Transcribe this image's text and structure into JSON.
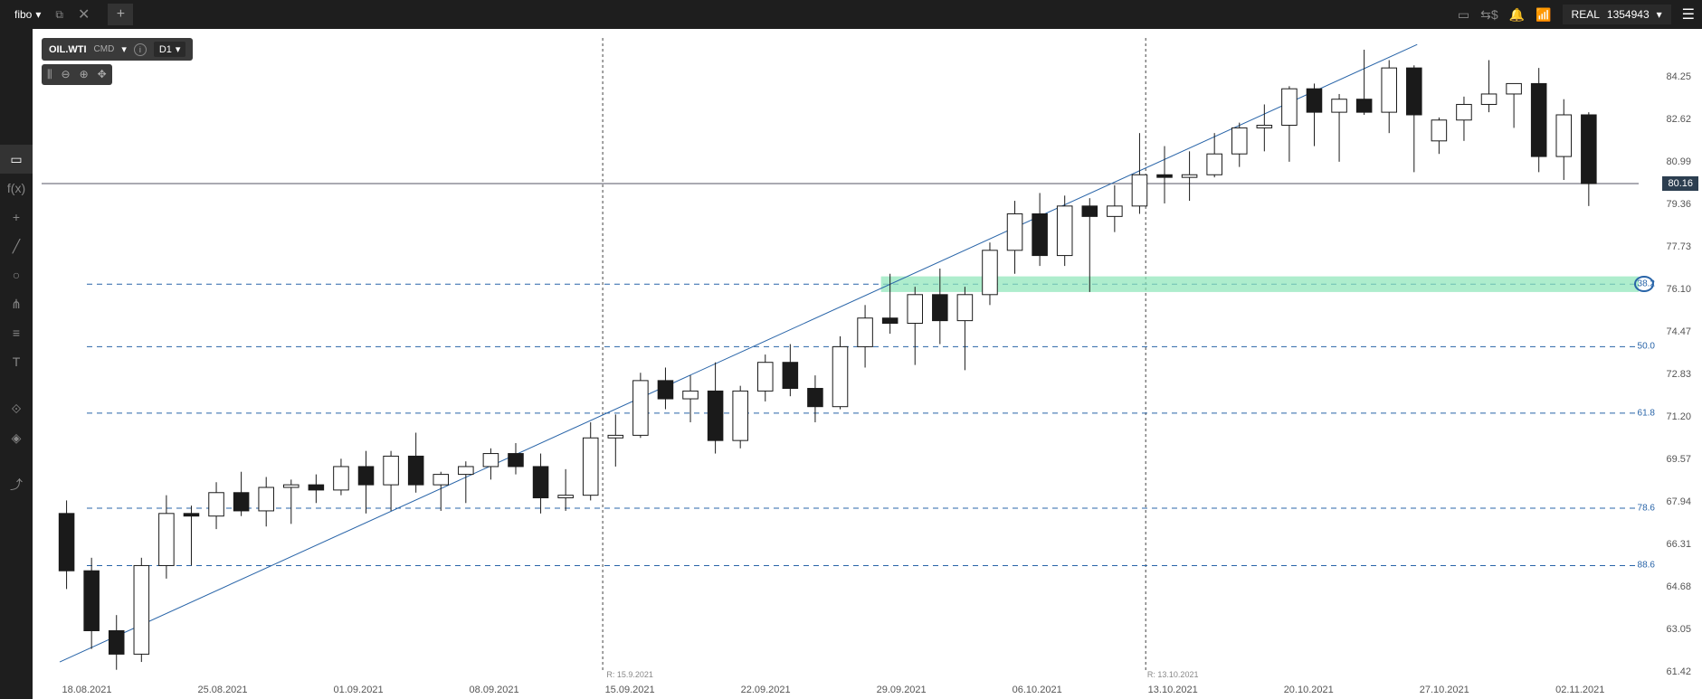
{
  "topbar": {
    "brand": "fibo",
    "add_tab": "+",
    "account_type": "REAL",
    "account_number": "1354943"
  },
  "symbol_bar": {
    "symbol": "OIL.WTI",
    "type": "CMD",
    "info": "i",
    "timeframe": "D1"
  },
  "chart": {
    "type": "candlestick",
    "background_color": "#ffffff",
    "grid_color": "#c8c8c8",
    "candle_up_fill": "#ffffff",
    "candle_down_fill": "#1a1a1a",
    "candle_border": "#1a1a1a",
    "fib_line_color": "#2864a8",
    "support_zone_color": "#8ce6b8",
    "trend_line_color": "#2864a8",
    "price_line_color": "#556",
    "current_price": "80.16",
    "y_min": 61.42,
    "y_max": 84.25,
    "y_ticks": [
      84.25,
      82.62,
      80.99,
      79.36,
      77.73,
      76.1,
      74.47,
      72.83,
      71.2,
      69.57,
      67.94,
      66.31,
      64.68,
      63.05,
      61.42
    ],
    "x_ticks": [
      "18.08.2021",
      "25.08.2021",
      "01.09.2021",
      "08.09.2021",
      "15.09.2021",
      "22.09.2021",
      "29.09.2021",
      "06.10.2021",
      "13.10.2021",
      "20.10.2021",
      "27.10.2021",
      "02.11.2021"
    ],
    "vertical_markers": [
      {
        "label": "R: 15.9.2021",
        "x_index": 4.0
      },
      {
        "label": "R: 13.10.2021",
        "x_index": 8.0
      }
    ],
    "fib_levels": [
      {
        "label": "38.2",
        "price": 76.3,
        "highlighted": true
      },
      {
        "label": "50.0",
        "price": 73.9
      },
      {
        "label": "61.8",
        "price": 71.35
      },
      {
        "label": "78.6",
        "price": 67.7
      },
      {
        "label": "88.6",
        "price": 65.5
      }
    ],
    "fib_zero_price": 84.6,
    "fib_hundred_price": 63.0,
    "support_zone": {
      "start_x_index": 5.85,
      "price_top": 76.6,
      "price_bottom": 76.0
    },
    "trend_line": {
      "x1_index": -0.2,
      "y1_price": 61.8,
      "x2_index": 9.8,
      "y2_price": 85.5
    },
    "candles": [
      {
        "o": 67.5,
        "h": 68.0,
        "l": 64.6,
        "c": 65.3
      },
      {
        "o": 65.3,
        "h": 65.8,
        "l": 62.3,
        "c": 63.0
      },
      {
        "o": 63.0,
        "h": 63.6,
        "l": 61.5,
        "c": 62.1
      },
      {
        "o": 62.1,
        "h": 65.8,
        "l": 61.8,
        "c": 65.5
      },
      {
        "o": 65.5,
        "h": 68.2,
        "l": 65.0,
        "c": 67.5
      },
      {
        "o": 67.5,
        "h": 67.8,
        "l": 65.5,
        "c": 67.4
      },
      {
        "o": 67.4,
        "h": 68.7,
        "l": 66.9,
        "c": 68.3
      },
      {
        "o": 68.3,
        "h": 69.1,
        "l": 67.4,
        "c": 67.6
      },
      {
        "o": 67.6,
        "h": 68.9,
        "l": 67.0,
        "c": 68.5
      },
      {
        "o": 68.5,
        "h": 68.8,
        "l": 67.1,
        "c": 68.6
      },
      {
        "o": 68.6,
        "h": 69.0,
        "l": 67.9,
        "c": 68.4
      },
      {
        "o": 68.4,
        "h": 69.6,
        "l": 68.2,
        "c": 69.3
      },
      {
        "o": 69.3,
        "h": 69.9,
        "l": 67.5,
        "c": 68.6
      },
      {
        "o": 68.6,
        "h": 69.9,
        "l": 67.6,
        "c": 69.7
      },
      {
        "o": 69.7,
        "h": 70.6,
        "l": 68.3,
        "c": 68.6
      },
      {
        "o": 68.6,
        "h": 69.1,
        "l": 67.6,
        "c": 69.0
      },
      {
        "o": 69.0,
        "h": 69.5,
        "l": 67.9,
        "c": 69.3
      },
      {
        "o": 69.3,
        "h": 70.0,
        "l": 68.8,
        "c": 69.8
      },
      {
        "o": 69.8,
        "h": 70.2,
        "l": 69.0,
        "c": 69.3
      },
      {
        "o": 69.3,
        "h": 69.8,
        "l": 67.5,
        "c": 68.1
      },
      {
        "o": 68.1,
        "h": 69.2,
        "l": 67.6,
        "c": 68.2
      },
      {
        "o": 68.2,
        "h": 71.0,
        "l": 68.0,
        "c": 70.4
      },
      {
        "o": 70.4,
        "h": 71.3,
        "l": 69.3,
        "c": 70.5
      },
      {
        "o": 70.5,
        "h": 72.9,
        "l": 70.4,
        "c": 72.6
      },
      {
        "o": 72.6,
        "h": 73.1,
        "l": 71.5,
        "c": 71.9
      },
      {
        "o": 71.9,
        "h": 72.8,
        "l": 71.0,
        "c": 72.2
      },
      {
        "o": 72.2,
        "h": 73.3,
        "l": 69.8,
        "c": 70.3
      },
      {
        "o": 70.3,
        "h": 72.4,
        "l": 70.0,
        "c": 72.2
      },
      {
        "o": 72.2,
        "h": 73.6,
        "l": 71.8,
        "c": 73.3
      },
      {
        "o": 73.3,
        "h": 74.0,
        "l": 72.0,
        "c": 72.3
      },
      {
        "o": 72.3,
        "h": 72.8,
        "l": 71.0,
        "c": 71.6
      },
      {
        "o": 71.6,
        "h": 74.3,
        "l": 71.5,
        "c": 73.9
      },
      {
        "o": 73.9,
        "h": 75.5,
        "l": 73.1,
        "c": 75.0
      },
      {
        "o": 75.0,
        "h": 76.7,
        "l": 74.4,
        "c": 74.8
      },
      {
        "o": 74.8,
        "h": 76.2,
        "l": 73.2,
        "c": 75.9
      },
      {
        "o": 75.9,
        "h": 76.9,
        "l": 74.0,
        "c": 74.9
      },
      {
        "o": 74.9,
        "h": 76.2,
        "l": 73.0,
        "c": 75.9
      },
      {
        "o": 75.9,
        "h": 77.9,
        "l": 75.5,
        "c": 77.6
      },
      {
        "o": 77.6,
        "h": 79.5,
        "l": 76.7,
        "c": 79.0
      },
      {
        "o": 79.0,
        "h": 79.8,
        "l": 77.0,
        "c": 77.4
      },
      {
        "o": 77.4,
        "h": 79.7,
        "l": 77.0,
        "c": 79.3
      },
      {
        "o": 79.3,
        "h": 79.6,
        "l": 76.0,
        "c": 78.9
      },
      {
        "o": 78.9,
        "h": 80.1,
        "l": 78.3,
        "c": 79.3
      },
      {
        "o": 79.3,
        "h": 82.1,
        "l": 79.0,
        "c": 80.5
      },
      {
        "o": 80.5,
        "h": 81.6,
        "l": 79.4,
        "c": 80.4
      },
      {
        "o": 80.4,
        "h": 81.4,
        "l": 79.5,
        "c": 80.5
      },
      {
        "o": 80.5,
        "h": 82.1,
        "l": 80.4,
        "c": 81.3
      },
      {
        "o": 81.3,
        "h": 82.5,
        "l": 80.8,
        "c": 82.3
      },
      {
        "o": 82.3,
        "h": 83.2,
        "l": 81.4,
        "c": 82.4
      },
      {
        "o": 82.4,
        "h": 83.9,
        "l": 81.0,
        "c": 83.8
      },
      {
        "o": 83.8,
        "h": 84.0,
        "l": 81.6,
        "c": 82.9
      },
      {
        "o": 82.9,
        "h": 83.6,
        "l": 81.0,
        "c": 83.4
      },
      {
        "o": 83.4,
        "h": 85.3,
        "l": 82.8,
        "c": 82.9
      },
      {
        "o": 82.9,
        "h": 84.9,
        "l": 82.1,
        "c": 84.6
      },
      {
        "o": 84.6,
        "h": 84.7,
        "l": 80.6,
        "c": 82.8
      },
      {
        "o": 81.8,
        "h": 82.7,
        "l": 81.3,
        "c": 82.6
      },
      {
        "o": 82.6,
        "h": 83.5,
        "l": 81.8,
        "c": 83.2
      },
      {
        "o": 83.2,
        "h": 84.9,
        "l": 82.9,
        "c": 83.6
      },
      {
        "o": 83.6,
        "h": 84.0,
        "l": 82.3,
        "c": 84.0
      },
      {
        "o": 84.0,
        "h": 84.6,
        "l": 80.6,
        "c": 81.2
      },
      {
        "o": 81.2,
        "h": 83.4,
        "l": 80.3,
        "c": 82.8
      },
      {
        "o": 82.8,
        "h": 82.9,
        "l": 79.3,
        "c": 80.16
      }
    ]
  }
}
